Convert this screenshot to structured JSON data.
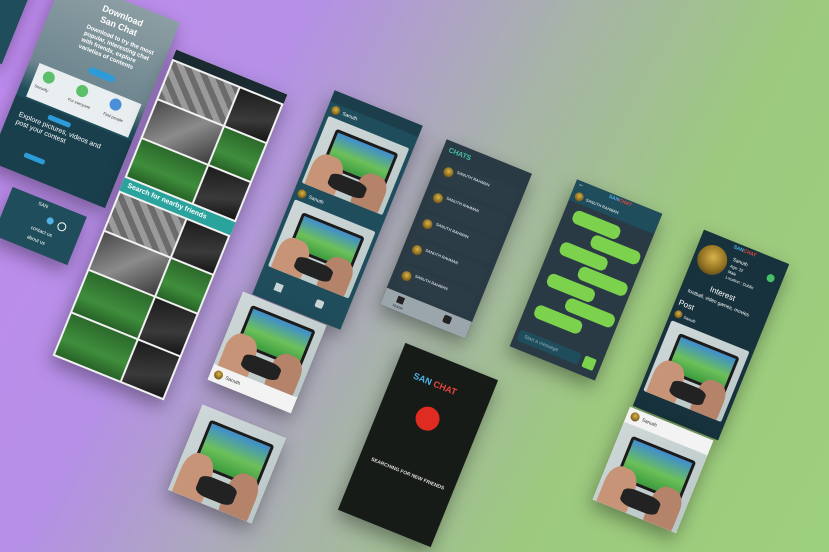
{
  "landing": {
    "title_line1": "Download",
    "title_line2": "San Chat",
    "description": "Download to try the most popular, interesting chat with friends, explore varieties of contents",
    "features": [
      {
        "icon": "lock-icon",
        "label": "Security"
      },
      {
        "icon": "wheelchair-icon",
        "label": "For everyone"
      },
      {
        "icon": "people-icon",
        "label": "Find people"
      }
    ],
    "cta_heading": "Explore pictures, videos and post your contest",
    "footer_title": "SAN",
    "footer_links": [
      "contact us",
      "about us"
    ]
  },
  "explore": {
    "search_label": "Search for nearby friends"
  },
  "feed": {
    "user_name": "Sanuth"
  },
  "chats": {
    "title": "CHATS",
    "contact_name": "SANUTH RAHMAN",
    "nav_home": "Home"
  },
  "splash": {
    "brand_san": "SAN",
    "brand_chat": "CHAT",
    "status": "SEARCHING FOR NEW FRIENDS"
  },
  "conversation": {
    "contact_name": "SANUTH RAHMAN",
    "input_placeholder": "Start a message",
    "brand_san": "SAN",
    "brand_chat": "CHAT"
  },
  "profile": {
    "brand_san": "SAN",
    "brand_chat": "CHAT",
    "name": "Sanuth",
    "age": "Age: 22",
    "gender": "Male",
    "location": "Location : Dublin",
    "interest_heading": "Interest",
    "interest_text": "football, video games, movies",
    "post_heading": "Post",
    "post_user": "Sanuth"
  },
  "colors": {
    "teal_bar": "#1f4d5c",
    "chat_bg": "#2a3a44",
    "bubble_green": "#7cd14d",
    "brand_red": "#e8453c",
    "brand_blue": "#4fb3e8",
    "splash_bg": "#161b18",
    "profile_bg": "#17323c"
  }
}
